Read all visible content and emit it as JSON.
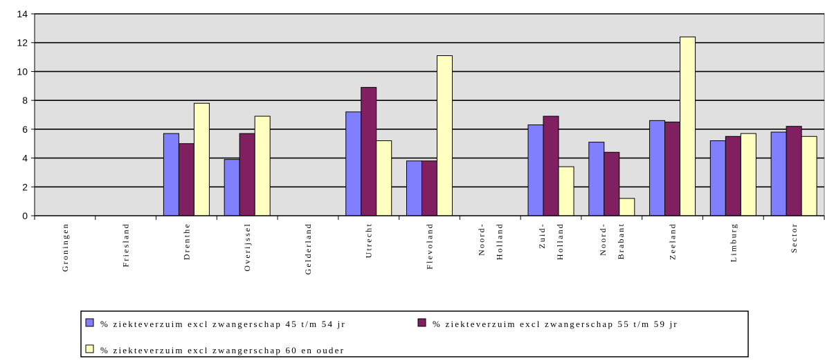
{
  "chart_data": {
    "type": "bar",
    "title": "",
    "xlabel": "",
    "ylabel": "",
    "ylim": [
      0,
      14
    ],
    "yticks": [
      0,
      2,
      4,
      6,
      8,
      10,
      12,
      14
    ],
    "grid": true,
    "legend_position": "bottom",
    "categories": [
      [
        "Groningen"
      ],
      [
        "Friesland"
      ],
      [
        "Drenthe"
      ],
      [
        "Overijssel"
      ],
      [
        "Gelderland"
      ],
      [
        "Utrecht"
      ],
      [
        "Flevoland"
      ],
      [
        "Noord-",
        "Holland"
      ],
      [
        "Zuid-",
        "Holland"
      ],
      [
        "Noord-",
        "Brabant"
      ],
      [
        "Zeeland"
      ],
      [
        "Limburg"
      ],
      [
        "Sector"
      ]
    ],
    "series": [
      {
        "name": "% ziekteverzuim excl zwangerschap 45 t/m 54 jr",
        "color": "#8080ff",
        "values": [
          null,
          null,
          5.7,
          3.9,
          null,
          7.2,
          3.8,
          null,
          6.3,
          5.1,
          6.6,
          5.2,
          5.8
        ]
      },
      {
        "name": "% ziekteverzuim excl zwangerschap 55 t/m 59 jr",
        "color": "#802060",
        "values": [
          null,
          null,
          5.0,
          5.7,
          null,
          8.9,
          3.8,
          null,
          6.9,
          4.4,
          6.5,
          5.5,
          6.2
        ]
      },
      {
        "name": "% ziekteverzuim excl zwangerschap 60 en ouder",
        "color": "#ffffc0",
        "values": [
          null,
          null,
          7.8,
          6.9,
          null,
          5.2,
          11.1,
          null,
          3.4,
          1.2,
          12.4,
          5.7,
          5.5
        ]
      }
    ],
    "colors": {
      "plot_background": "#e0e0e0",
      "gridline": "#000000"
    }
  }
}
